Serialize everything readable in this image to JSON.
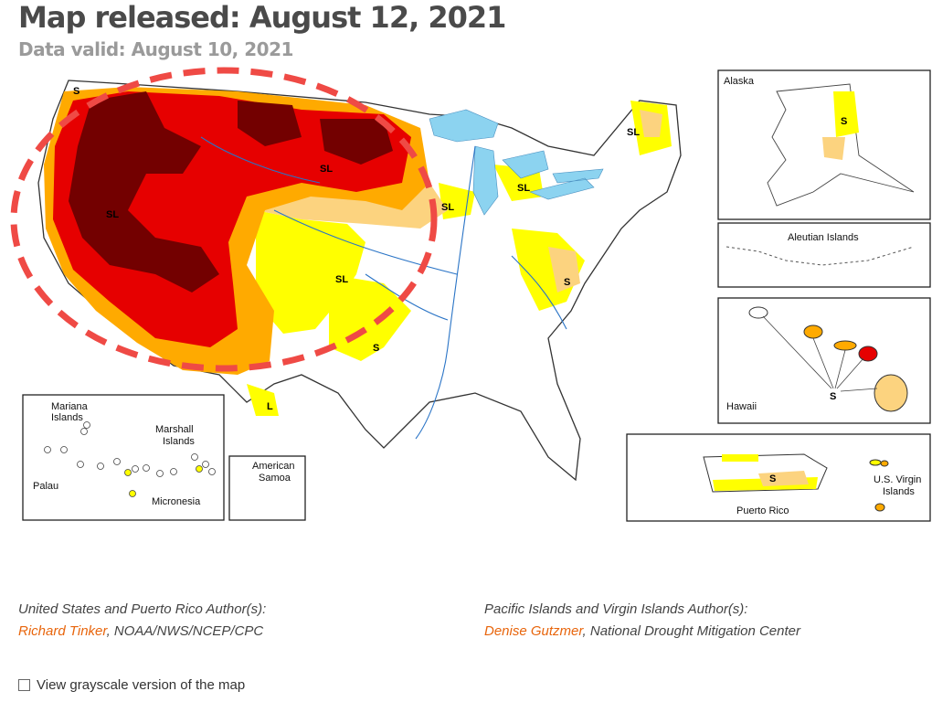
{
  "header": {
    "title": "Map released: August 12, 2021",
    "subtitle": "Data valid: August 10, 2021"
  },
  "map": {
    "impact_labels": [
      "SL",
      "SL",
      "SL",
      "SL",
      "SL",
      "SL",
      "SL",
      "S",
      "S",
      "L",
      "S"
    ],
    "insets": {
      "alaska": "Alaska",
      "aleutian": "Aleutian Islands",
      "hawaii": "Hawaii",
      "puerto_rico": "Puerto Rico",
      "virgin_islands_1": "U.S. Virgin",
      "virgin_islands_2": "Islands",
      "pacific": {
        "mariana_1": "Mariana",
        "mariana_2": "Islands",
        "marshall_1": "Marshall",
        "marshall_2": "Islands",
        "palau": "Palau",
        "micronesia": "Micronesia"
      },
      "samoa_1": "American",
      "samoa_2": "Samoa"
    },
    "colors": {
      "d0": "#ffff00",
      "d1": "#fcd37f",
      "d2": "#ffaa00",
      "d3": "#e60000",
      "d4": "#730000",
      "water": "#8cd3f0",
      "highlight_ellipse": "#ef4a45"
    }
  },
  "authors": {
    "us_heading": "United States and Puerto Rico Author(s):",
    "us_name": "Richard Tinker",
    "us_org": ", NOAA/NWS/NCEP/CPC",
    "pacific_heading": "Pacific Islands and Virgin Islands Author(s):",
    "pacific_name": "Denise Gutzmer",
    "pacific_org": ", National Drought Mitigation Center"
  },
  "grayscale_label": "View grayscale version of the map"
}
